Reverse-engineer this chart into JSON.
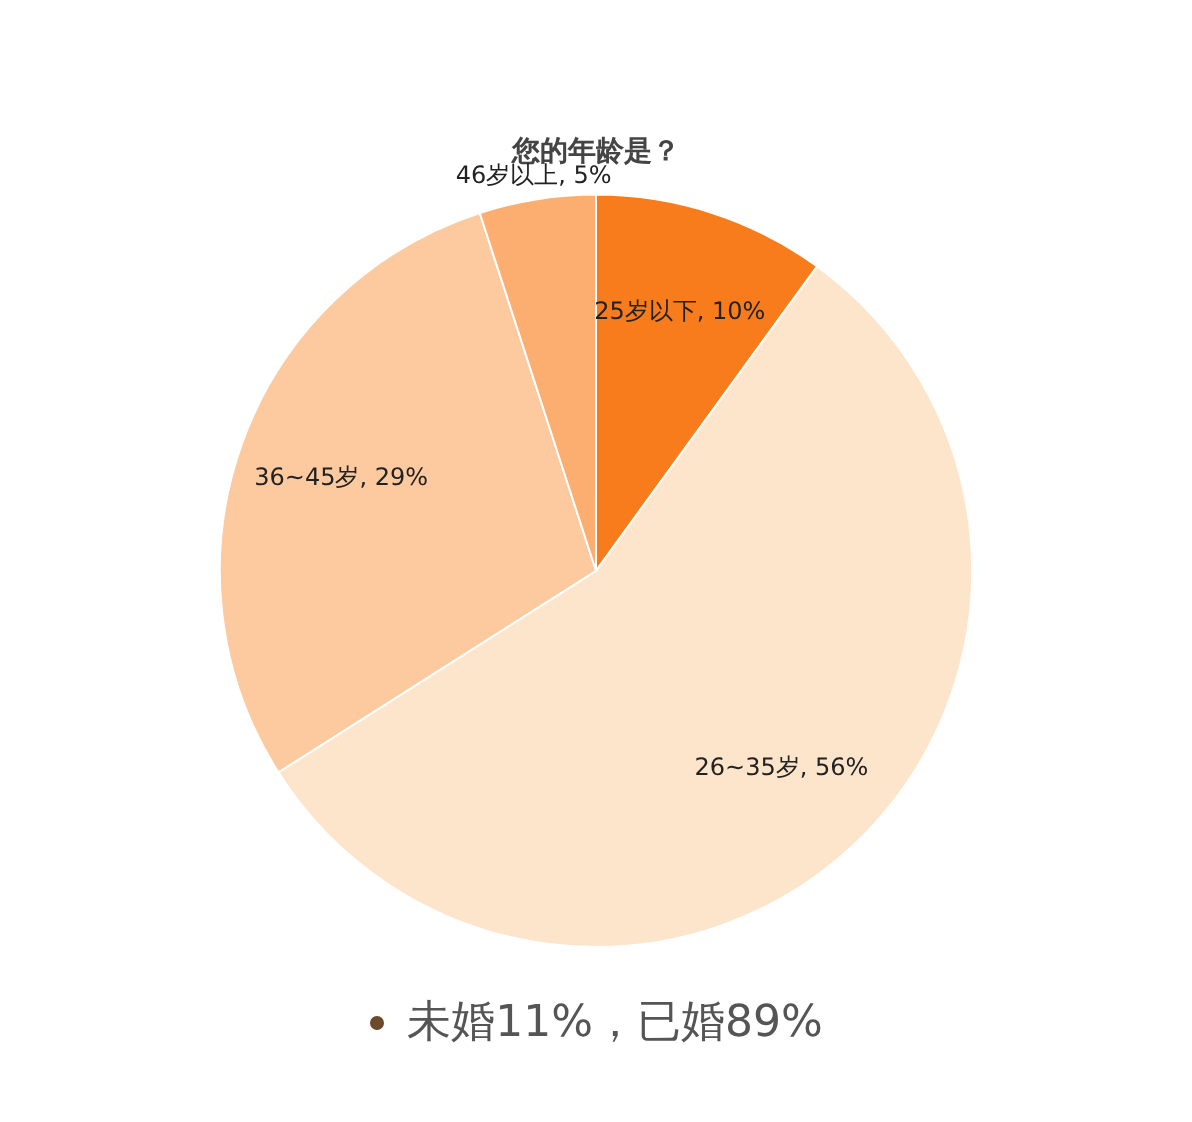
{
  "chart_data": {
    "type": "pie",
    "title": "您的年龄是？",
    "categories": [
      "25岁以下",
      "26~35岁",
      "36~45岁",
      "46岁以上"
    ],
    "values": [
      10,
      56,
      29,
      5
    ],
    "value_labels": [
      ", 10%",
      ", 56%",
      ", 29%",
      ", 5%"
    ],
    "colors": [
      "#f97c1c",
      "#fde5cc",
      "#fdc99e",
      "#fcae70"
    ],
    "legend": false,
    "annotations": [
      "未婚11%，已婚89%"
    ]
  }
}
